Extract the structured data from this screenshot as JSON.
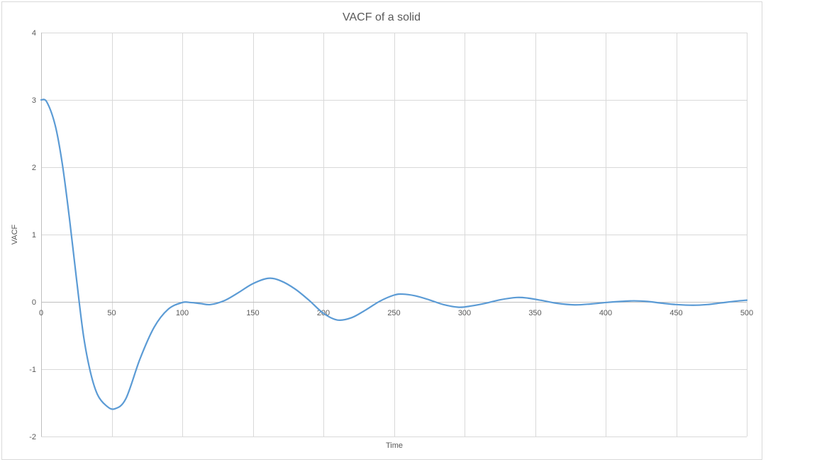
{
  "chart_data": {
    "type": "line",
    "title": "VACF of a solid",
    "xlabel": "Time",
    "ylabel": "VACF",
    "xlim": [
      0,
      500
    ],
    "ylim": [
      -2,
      4
    ],
    "x_ticks": [
      0,
      50,
      100,
      150,
      200,
      250,
      300,
      350,
      400,
      450,
      500
    ],
    "y_ticks": [
      -2,
      -1,
      0,
      1,
      2,
      3,
      4
    ],
    "grid": true,
    "legend": false,
    "series": [
      {
        "name": "VACF",
        "color": "#5B9BD5",
        "points": [
          [
            0,
            3.0
          ],
          [
            4,
            2.97
          ],
          [
            10,
            2.62
          ],
          [
            15,
            2.05
          ],
          [
            20,
            1.25
          ],
          [
            25,
            0.35
          ],
          [
            30,
            -0.5
          ],
          [
            35,
            -1.05
          ],
          [
            40,
            -1.38
          ],
          [
            46,
            -1.54
          ],
          [
            52,
            -1.59
          ],
          [
            60,
            -1.44
          ],
          [
            70,
            -0.85
          ],
          [
            80,
            -0.38
          ],
          [
            90,
            -0.11
          ],
          [
            100,
            -0.01
          ],
          [
            106,
            -0.01
          ],
          [
            113,
            -0.025
          ],
          [
            120,
            -0.04
          ],
          [
            130,
            0.02
          ],
          [
            140,
            0.14
          ],
          [
            150,
            0.27
          ],
          [
            161,
            0.35
          ],
          [
            170,
            0.31
          ],
          [
            180,
            0.19
          ],
          [
            190,
            0.02
          ],
          [
            200,
            -0.17
          ],
          [
            210,
            -0.27
          ],
          [
            220,
            -0.235
          ],
          [
            230,
            -0.12
          ],
          [
            240,
            0.01
          ],
          [
            250,
            0.1
          ],
          [
            256,
            0.115
          ],
          [
            265,
            0.09
          ],
          [
            275,
            0.03
          ],
          [
            285,
            -0.04
          ],
          [
            296,
            -0.08
          ],
          [
            305,
            -0.06
          ],
          [
            315,
            -0.02
          ],
          [
            325,
            0.03
          ],
          [
            337,
            0.065
          ],
          [
            345,
            0.055
          ],
          [
            355,
            0.02
          ],
          [
            365,
            -0.02
          ],
          [
            378,
            -0.045
          ],
          [
            390,
            -0.03
          ],
          [
            400,
            -0.01
          ],
          [
            410,
            0.005
          ],
          [
            420,
            0.015
          ],
          [
            430,
            0.005
          ],
          [
            440,
            -0.02
          ],
          [
            450,
            -0.04
          ],
          [
            462,
            -0.05
          ],
          [
            472,
            -0.04
          ],
          [
            482,
            -0.015
          ],
          [
            492,
            0.01
          ],
          [
            500,
            0.025
          ]
        ]
      }
    ],
    "colors": {
      "line": "#5B9BD5",
      "gridline": "#D9D9D9",
      "axis_line": "#BFBFBF",
      "chart_border": "#D9D9D9",
      "text": "#595959",
      "background": "#FFFFFF"
    }
  }
}
